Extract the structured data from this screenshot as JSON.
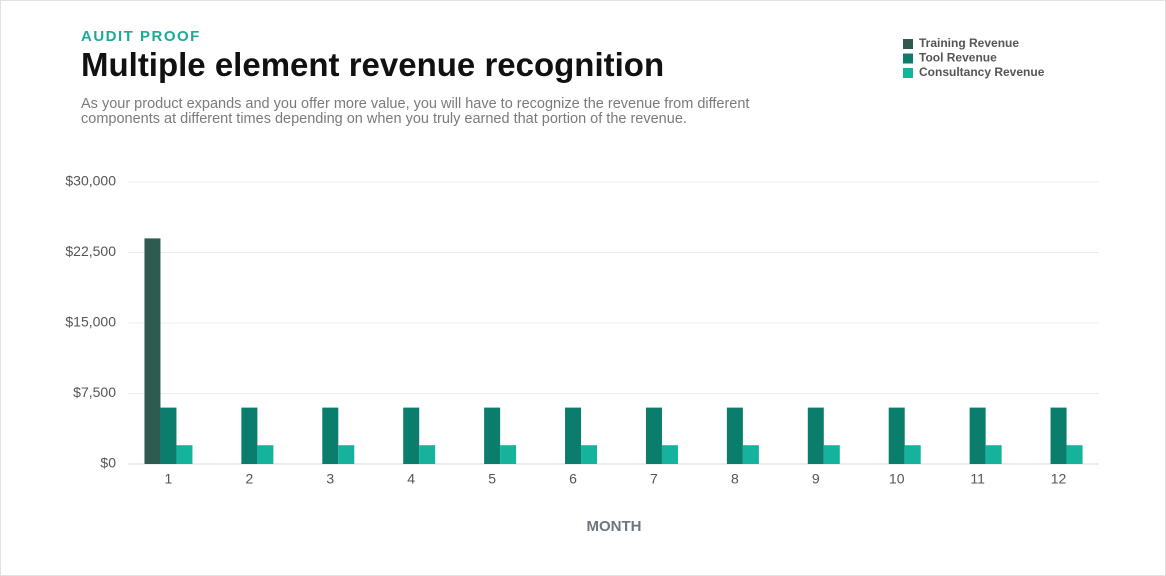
{
  "chart_data": {
    "type": "bar",
    "kicker": "AUDIT PROOF",
    "title": "Multiple element revenue recognition",
    "subtitle": "As your product expands and you offer more value, you will have to recognize the revenue from different components at different times depending on when you truly earned that portion of the revenue.",
    "xlabel": "MONTH",
    "categories": [
      "1",
      "2",
      "3",
      "4",
      "5",
      "6",
      "7",
      "8",
      "9",
      "10",
      "11",
      "12"
    ],
    "series": [
      {
        "name": "Training Revenue",
        "color": "#2f5a50",
        "values": [
          24000,
          0,
          0,
          0,
          0,
          0,
          0,
          0,
          0,
          0,
          0,
          0
        ]
      },
      {
        "name": "Tool Revenue",
        "color": "#0a7d6c",
        "values": [
          6000,
          6000,
          6000,
          6000,
          6000,
          6000,
          6000,
          6000,
          6000,
          6000,
          6000,
          6000
        ]
      },
      {
        "name": "Consultancy Revenue",
        "color": "#15b39c",
        "values": [
          2000,
          2000,
          2000,
          2000,
          2000,
          2000,
          2000,
          2000,
          2000,
          2000,
          2000,
          2000
        ]
      }
    ],
    "ylim": [
      0,
      30000
    ],
    "yticks": [
      {
        "value": 0,
        "label": "$0"
      },
      {
        "value": 7500,
        "label": "$7,500"
      },
      {
        "value": 15000,
        "label": "$15,000"
      },
      {
        "value": 22500,
        "label": "$22,500"
      },
      {
        "value": 30000,
        "label": "$30,000"
      }
    ],
    "grid": true,
    "legend": "top-right"
  }
}
